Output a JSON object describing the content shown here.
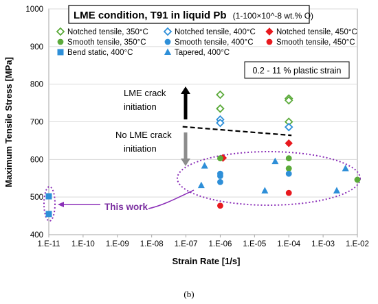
{
  "chart_data": {
    "type": "scatter",
    "title": "LME condition, T91 in liquid Pb",
    "title_note": "(1-100×10^-8 wt.% O)",
    "xlabel": "Strain Rate [1/s]",
    "ylabel": "Maximum Tensile Stress [MPa]",
    "x_scale": "log",
    "xlim": [
      1e-11,
      0.01
    ],
    "ylim": [
      400,
      1000
    ],
    "x_tick_labels": [
      "1.E-11",
      "1.E-10",
      "1.E-09",
      "1.E-08",
      "1.E-07",
      "1.E-06",
      "1.E-05",
      "1.E-04",
      "1.E-03",
      "1.E-02"
    ],
    "y_tick_labels": [
      "400",
      "500",
      "600",
      "700",
      "800",
      "900",
      "1000"
    ],
    "grid": "horizontal",
    "legend_position": "top",
    "series": [
      {
        "name": "Notched tensile, 350°C",
        "marker": "diamond-open",
        "color": "#5BAA3A",
        "points": [
          [
            1e-06,
            772
          ],
          [
            1e-06,
            735
          ],
          [
            0.0001,
            762
          ],
          [
            0.0001,
            757
          ],
          [
            0.0001,
            700
          ]
        ]
      },
      {
        "name": "Notched tensile, 400°C",
        "marker": "diamond-open",
        "color": "#2E8FD8",
        "points": [
          [
            1e-06,
            706
          ],
          [
            1e-06,
            697
          ],
          [
            0.0001,
            686
          ]
        ]
      },
      {
        "name": "Notched tensile, 450°C",
        "marker": "diamond",
        "color": "#E8191E",
        "points": [
          [
            1.2e-06,
            604
          ],
          [
            0.0001,
            643
          ]
        ]
      },
      {
        "name": "Smooth tensile, 350°C",
        "marker": "circle",
        "color": "#5BAA3A",
        "points": [
          [
            1e-06,
            603
          ],
          [
            0.0001,
            603
          ],
          [
            0.0001,
            576
          ],
          [
            0.01,
            546
          ]
        ]
      },
      {
        "name": "Smooth tensile, 400°C",
        "marker": "circle",
        "color": "#2E8FD8",
        "points": [
          [
            1e-06,
            562
          ],
          [
            1e-06,
            556
          ],
          [
            1e-06,
            540
          ],
          [
            0.0001,
            562
          ]
        ]
      },
      {
        "name": "Smooth tensile, 450°C",
        "marker": "circle",
        "color": "#E8191E",
        "points": [
          [
            1e-06,
            477
          ],
          [
            0.0001,
            511
          ]
        ]
      },
      {
        "name": "Bend static, 400°C",
        "marker": "square",
        "color": "#2E8FD8",
        "points": [
          [
            1e-11,
            502
          ],
          [
            1e-11,
            455
          ]
        ]
      },
      {
        "name": "Tapered, 400°C",
        "marker": "triangle",
        "color": "#2E8FD8",
        "points": [
          [
            3.5e-07,
            583
          ],
          [
            2.8e-07,
            531
          ],
          [
            2e-05,
            517
          ],
          [
            4e-05,
            595
          ],
          [
            0.0025,
            517
          ],
          [
            0.0045,
            576
          ]
        ]
      }
    ],
    "annotations": {
      "strain_box": "0.2 - 11 % plastic strain",
      "lme_crack": [
        "LME crack",
        "initiation"
      ],
      "no_lme_crack": [
        "No LME crack",
        "initiation"
      ],
      "this_work": "This work",
      "panel_label": "(b)"
    },
    "threshold_line": {
      "x": [
        8e-08,
        0.00012
      ],
      "y": [
        687,
        664
      ]
    }
  }
}
